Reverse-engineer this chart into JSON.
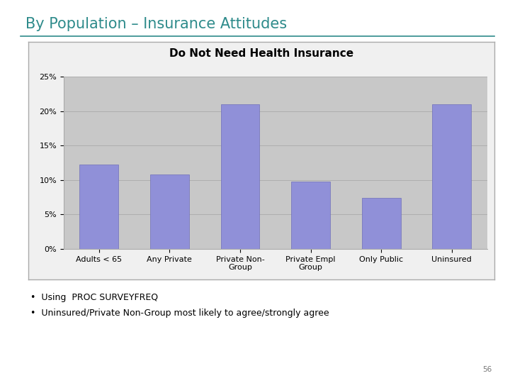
{
  "title_main": "By Population – Insurance Attitudes",
  "chart_title": "Do Not Need Health Insurance",
  "categories": [
    "Adults < 65",
    "Any Private",
    "Private Non-\nGroup",
    "Private Empl\nGroup",
    "Only Public",
    "Uninsured"
  ],
  "values": [
    12.2,
    10.8,
    21.0,
    9.8,
    7.4,
    21.0
  ],
  "bar_color": "#9090d8",
  "bar_edge_color": "#7070b8",
  "ylim": [
    0,
    25
  ],
  "yticks": [
    0,
    5,
    10,
    15,
    20,
    25
  ],
  "yticklabels": [
    "0%",
    "5%",
    "10%",
    "15%",
    "20%",
    "25%"
  ],
  "plot_area_bg_color": "#c8c8c8",
  "outer_box_bg_color": "#f0f0f0",
  "slide_bg_color": "#ffffff",
  "title_color": "#2e8b8b",
  "chart_title_fontsize": 11,
  "main_title_fontsize": 15,
  "axis_tick_fontsize": 8,
  "bullet1": "Using  PROC SURVEYFREQ",
  "bullet2": "Uninsured/Private Non-Group most likely to agree/strongly agree",
  "page_number": "56",
  "title_underline_color": "#2e8b8b",
  "grid_color": "#aaaaaa",
  "outer_box_edge_color": "#aaaaaa"
}
